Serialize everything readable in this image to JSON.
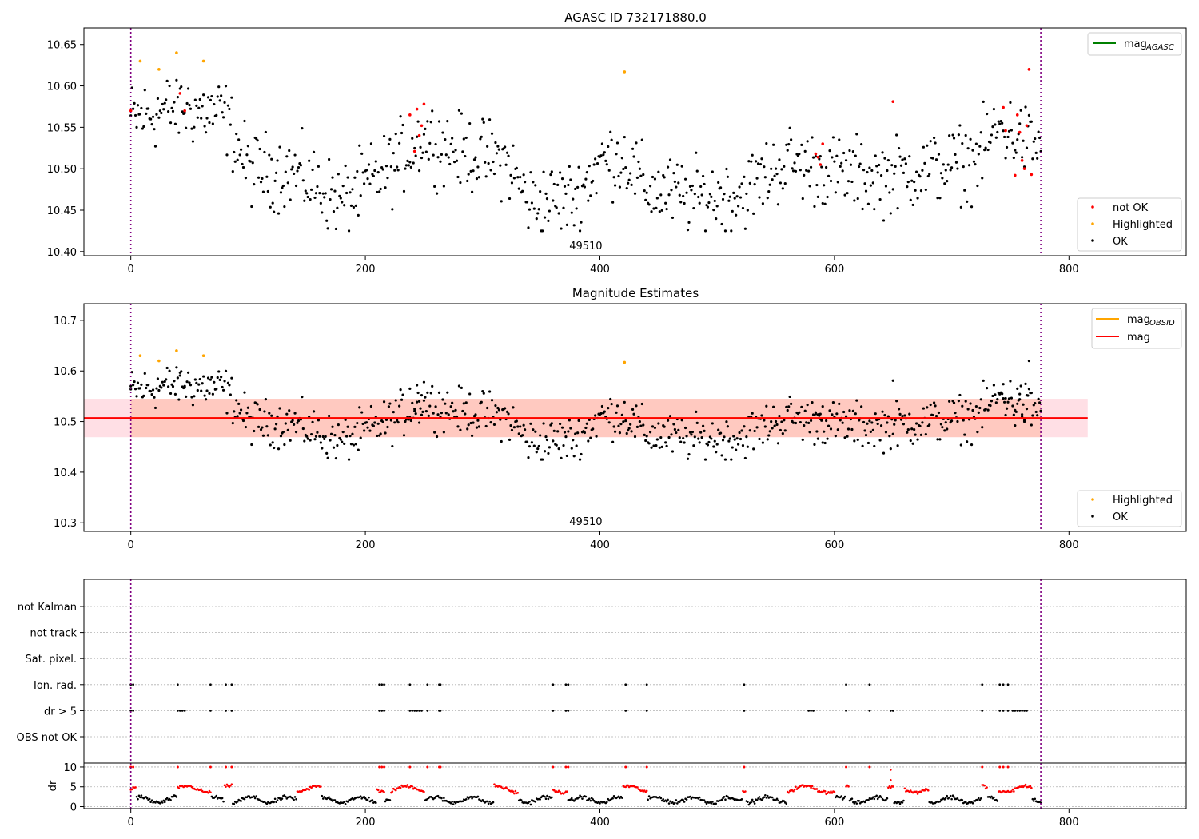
{
  "chart_data": [
    {
      "type": "scatter",
      "title": "AGASC ID 732171880.0",
      "xlim": [
        -40,
        900
      ],
      "ylim": [
        10.395,
        10.67
      ],
      "xticks": [
        0,
        200,
        400,
        600,
        800
      ],
      "yticks": [
        10.4,
        10.45,
        10.5,
        10.55,
        10.6,
        10.65
      ],
      "ytick_labels": [
        "10.40",
        "10.45",
        "10.50",
        "10.55",
        "10.60",
        "10.65"
      ],
      "vlines": [
        0,
        776
      ],
      "annotation": {
        "x": 388,
        "text": "49510"
      },
      "legend_top": {
        "position": "top-right",
        "entries": [
          {
            "label": "mag",
            "sub": "AGASC",
            "color": "#008000"
          }
        ]
      },
      "legend_bottom": {
        "position": "bottom-right",
        "entries": [
          {
            "label": "not OK",
            "color": "#ff0000"
          },
          {
            "label": "Highlighted",
            "color": "#ffa500"
          },
          {
            "label": "OK",
            "color": "#000000"
          }
        ]
      },
      "highlighted": {
        "x": [
          8,
          24,
          39,
          62,
          421
        ],
        "y": [
          10.63,
          10.62,
          10.64,
          10.63,
          10.617
        ]
      },
      "not_ok": {
        "x": [
          0,
          42,
          46,
          238,
          242,
          244,
          246,
          248,
          250,
          584,
          586,
          588,
          590,
          650,
          744,
          746,
          754,
          756,
          758,
          760,
          762,
          764,
          766,
          768
        ],
        "y": [
          10.57,
          10.591,
          10.57,
          10.565,
          10.521,
          10.572,
          10.54,
          10.552,
          10.578,
          10.518,
          10.514,
          10.505,
          10.53,
          10.581,
          10.574,
          10.546,
          10.492,
          10.565,
          10.544,
          10.51,
          10.5,
          10.552,
          10.62,
          10.493
        ]
      }
    },
    {
      "type": "scatter",
      "title": "Magnitude Estimates",
      "xlim": [
        -40,
        900
      ],
      "ylim": [
        10.283,
        10.733
      ],
      "xticks": [
        0,
        200,
        400,
        600,
        800
      ],
      "yticks": [
        10.3,
        10.4,
        10.5,
        10.6,
        10.7
      ],
      "ytick_labels": [
        "10.3",
        "10.4",
        "10.5",
        "10.6",
        "10.7"
      ],
      "vlines": [
        0,
        776
      ],
      "annotation": {
        "x": 388,
        "text": "49510"
      },
      "mag": 10.507,
      "band": {
        "low": 10.469,
        "high": 10.545,
        "x_range": [
          -40,
          816
        ]
      },
      "mag_obsid": {
        "x_range": [
          0,
          776
        ],
        "y": 10.507
      },
      "legend_top": {
        "position": "top-right",
        "entries": [
          {
            "label": "mag",
            "sub": "OBSID",
            "color": "#ffa500"
          },
          {
            "label": "mag",
            "sub": "",
            "color": "#ff0000"
          }
        ]
      },
      "legend_bottom": {
        "position": "bottom-right",
        "entries": [
          {
            "label": "Highlighted",
            "color": "#ffa500"
          },
          {
            "label": "OK",
            "color": "#000000"
          }
        ]
      },
      "highlighted": {
        "x": [
          8,
          24,
          39,
          62,
          421
        ],
        "y": [
          10.63,
          10.62,
          10.64,
          10.63,
          10.617
        ]
      }
    },
    {
      "type": "scatter",
      "title": "",
      "xlim": [
        -40,
        900
      ],
      "xticks": [
        0,
        200,
        400,
        600,
        800
      ],
      "vlines": [
        0,
        776
      ],
      "flag_rows": [
        "not Kalman",
        "not track",
        "Sat. pixel.",
        "Ion. rad.",
        "dr > 5",
        "OBS not OK"
      ],
      "ion_rad_x": [
        0,
        2,
        40,
        68,
        81,
        86,
        212,
        214,
        216,
        238,
        253,
        263,
        264,
        360,
        371,
        373,
        422,
        440,
        523,
        610,
        630,
        726,
        741,
        744,
        748
      ],
      "dr5_x": [
        0,
        2,
        40,
        42,
        44,
        46,
        68,
        81,
        86,
        212,
        214,
        216,
        238,
        240,
        242,
        244,
        246,
        248,
        253,
        263,
        264,
        360,
        371,
        373,
        422,
        440,
        523,
        578,
        580,
        582,
        610,
        630,
        648,
        650,
        726,
        741,
        744,
        748,
        752,
        754,
        756,
        758,
        760,
        762,
        764
      ],
      "dr_panel": {
        "ylabel": "dr",
        "ylim": [
          -0.5,
          11
        ],
        "yticks": [
          0,
          5,
          10
        ],
        "ytick_labels": [
          "0",
          "5",
          "10"
        ],
        "red_segments": [
          [
            0,
            4
          ],
          [
            40,
            68
          ],
          [
            80,
            86
          ],
          [
            142,
            162
          ],
          [
            210,
            216
          ],
          [
            222,
            248
          ],
          [
            246,
            250
          ],
          [
            310,
            318
          ],
          [
            318,
            330
          ],
          [
            360,
            372
          ],
          [
            420,
            440
          ],
          [
            522,
            524
          ],
          [
            560,
            578
          ],
          [
            578,
            600
          ],
          [
            610,
            612
          ],
          [
            646,
            650
          ],
          [
            660,
            680
          ],
          [
            726,
            730
          ],
          [
            740,
            768
          ]
        ],
        "red_top_x": [
          0,
          2,
          40,
          68,
          81,
          86,
          212,
          214,
          216,
          238,
          253,
          263,
          264,
          360,
          371,
          373,
          422,
          440,
          523,
          610,
          630,
          726,
          741,
          744,
          748
        ]
      }
    }
  ]
}
